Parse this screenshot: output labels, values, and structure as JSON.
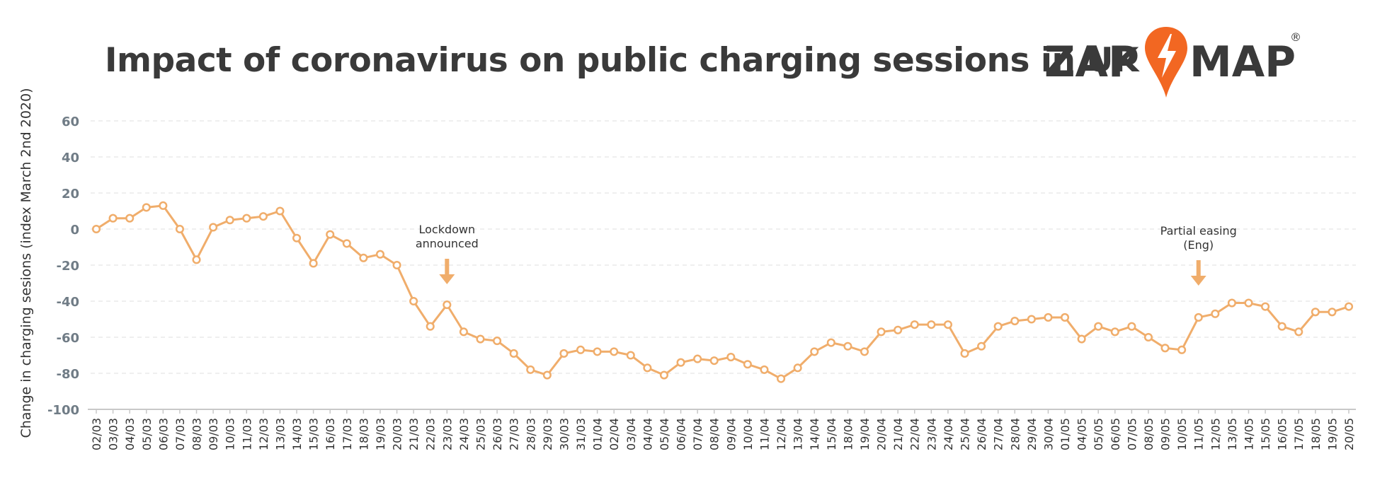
{
  "title": "Impact of coronavirus on public charging sessions in UK",
  "logo": {
    "left_text": "ZAP",
    "right_text": "MAP",
    "registered": "®",
    "accent": "#f26722",
    "text_color": "#3a3a3a"
  },
  "watermark": "",
  "colors": {
    "line": "#f0ad6b",
    "marker_fill": "#ffffff",
    "grid": "#e5e5e5",
    "axis": "#c8c8c8",
    "tick_y": "#707c86",
    "tick_x": "#333333",
    "arrow": "#f0ad6b"
  },
  "chart_data": {
    "type": "line",
    "title": "Impact of coronavirus on public charging sessions in UK",
    "xlabel": "",
    "ylabel": "Change in charging sesions (index March 2nd 2020)",
    "ylim": [
      -100,
      60
    ],
    "yticks": [
      60,
      40,
      20,
      0,
      -20,
      -40,
      -60,
      -80,
      -100
    ],
    "grid": true,
    "categories": [
      "02/03",
      "03/03",
      "04/03",
      "05/03",
      "06/03",
      "07/03",
      "08/03",
      "09/03",
      "10/03",
      "11/03",
      "12/03",
      "13/03",
      "14/03",
      "15/03",
      "16/03",
      "17/03",
      "18/03",
      "19/03",
      "20/03",
      "21/03",
      "22/03",
      "23/03",
      "24/03",
      "25/03",
      "26/03",
      "27/03",
      "28/03",
      "29/03",
      "30/03",
      "31/03",
      "01/04",
      "02/04",
      "03/04",
      "04/04",
      "05/04",
      "06/04",
      "07/04",
      "08/04",
      "09/04",
      "10/04",
      "11/04",
      "12/04",
      "13/04",
      "14/04",
      "15/04",
      "18/04",
      "19/04",
      "20/04",
      "21/04",
      "22/04",
      "23/04",
      "24/04",
      "25/04",
      "26/04",
      "27/04",
      "28/04",
      "29/04",
      "30/04",
      "01/05",
      "04/05",
      "05/05",
      "06/05",
      "07/05",
      "08/05",
      "09/05",
      "10/05",
      "11/05",
      "12/05",
      "13/05",
      "14/05",
      "15/05",
      "16/05",
      "17/05",
      "18/05",
      "19/05",
      "20/05"
    ],
    "series": [
      {
        "values": [
          0,
          6,
          6,
          12,
          13,
          0,
          -17,
          1,
          5,
          6,
          7,
          10,
          -5,
          -19,
          -3,
          -8,
          -16,
          -14,
          -20,
          -40,
          -54,
          -42,
          -57,
          -61,
          -62,
          -69,
          -78,
          -81,
          -69,
          -67,
          -68,
          -68,
          -70,
          -77,
          -81,
          -74,
          -72,
          -73,
          -71,
          -75,
          -78,
          -83,
          -77,
          -68,
          -63,
          -65,
          -68,
          -57,
          -56,
          -53,
          -53,
          -53,
          -69,
          -65,
          -54,
          -51,
          -50,
          -49,
          -49,
          -61,
          -54,
          -57,
          -54,
          -60,
          -66,
          -67,
          -49,
          -47,
          -41,
          -41,
          -43,
          -54,
          -57,
          -46,
          -46,
          -43
        ]
      }
    ],
    "annotations": [
      {
        "text": [
          "Lockdown",
          "announced"
        ],
        "at": "23/03"
      },
      {
        "text": [
          "Partial easing",
          "(Eng)"
        ],
        "at": "11/05"
      }
    ]
  }
}
